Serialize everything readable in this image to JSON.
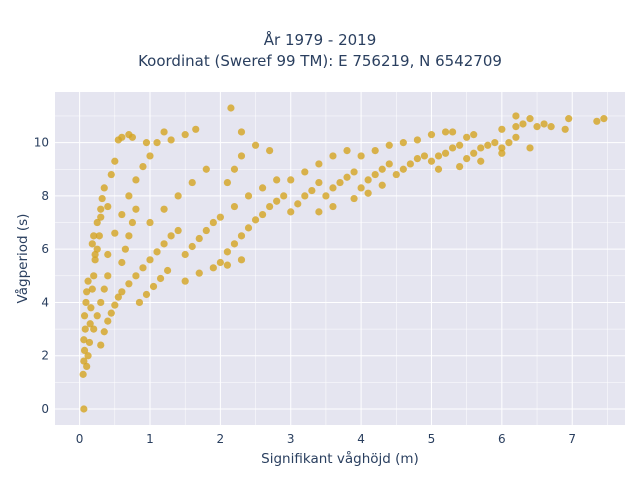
{
  "chart_data": {
    "type": "scatter",
    "title_line1": "År 1979 - 2019",
    "title_line2": "Koordinat (Sweref 99 TM): E 756219, N 6542709",
    "xlabel": "Signifikant våghöjd (m)",
    "ylabel": "Vågperiod (s)",
    "xlim": [
      -0.35,
      7.75
    ],
    "ylim": [
      -0.6,
      11.9
    ],
    "xticks": [
      0,
      1,
      2,
      3,
      4,
      5,
      6,
      7
    ],
    "yticks": [
      0,
      2,
      4,
      6,
      8,
      10
    ],
    "grid": true,
    "legend": "none",
    "colors": {
      "marker": "#D4A421",
      "plot_bg": "#E5E5F0",
      "grid": "#ffffff"
    },
    "series": [
      {
        "points": [
          [
            0.06,
            0.0
          ],
          [
            0.05,
            1.3
          ],
          [
            0.06,
            1.8
          ],
          [
            0.07,
            2.2
          ],
          [
            0.06,
            2.6
          ],
          [
            0.08,
            3.0
          ],
          [
            0.07,
            3.5
          ],
          [
            0.09,
            4.0
          ],
          [
            0.1,
            4.4
          ],
          [
            0.12,
            4.8
          ],
          [
            0.1,
            1.6
          ],
          [
            0.12,
            2.0
          ],
          [
            0.14,
            2.5
          ],
          [
            0.15,
            3.2
          ],
          [
            0.16,
            3.8
          ],
          [
            0.18,
            4.5
          ],
          [
            0.2,
            5.0
          ],
          [
            0.22,
            5.6
          ],
          [
            0.25,
            6.0
          ],
          [
            0.28,
            6.5
          ],
          [
            0.3,
            7.2
          ],
          [
            0.32,
            7.9
          ],
          [
            0.35,
            8.3
          ],
          [
            0.4,
            7.6
          ],
          [
            0.45,
            8.8
          ],
          [
            0.5,
            9.3
          ],
          [
            0.55,
            10.1
          ],
          [
            0.6,
            10.2
          ],
          [
            0.7,
            10.3
          ],
          [
            0.75,
            10.2
          ],
          [
            0.3,
            2.4
          ],
          [
            0.35,
            2.9
          ],
          [
            0.4,
            3.3
          ],
          [
            0.45,
            3.6
          ],
          [
            0.5,
            3.9
          ],
          [
            0.55,
            4.2
          ],
          [
            0.6,
            4.4
          ],
          [
            0.7,
            4.7
          ],
          [
            0.8,
            5.0
          ],
          [
            0.9,
            5.3
          ],
          [
            0.4,
            5.8
          ],
          [
            0.5,
            6.6
          ],
          [
            0.6,
            7.3
          ],
          [
            0.7,
            8.0
          ],
          [
            0.8,
            8.6
          ],
          [
            0.9,
            9.1
          ],
          [
            1.0,
            9.5
          ],
          [
            1.1,
            10.0
          ],
          [
            1.2,
            10.4
          ],
          [
            1.3,
            10.1
          ],
          [
            1.0,
            5.6
          ],
          [
            1.1,
            5.9
          ],
          [
            1.2,
            6.2
          ],
          [
            1.3,
            6.5
          ],
          [
            1.4,
            6.7
          ],
          [
            1.0,
            7.0
          ],
          [
            1.2,
            7.5
          ],
          [
            1.4,
            8.0
          ],
          [
            1.6,
            8.5
          ],
          [
            1.8,
            9.0
          ],
          [
            1.5,
            5.8
          ],
          [
            1.6,
            6.1
          ],
          [
            1.7,
            6.4
          ],
          [
            1.8,
            6.7
          ],
          [
            1.9,
            7.0
          ],
          [
            2.0,
            7.2
          ],
          [
            2.2,
            7.6
          ],
          [
            2.4,
            8.0
          ],
          [
            2.6,
            8.3
          ],
          [
            2.8,
            8.6
          ],
          [
            2.0,
            5.5
          ],
          [
            2.1,
            5.9
          ],
          [
            2.2,
            6.2
          ],
          [
            2.3,
            6.5
          ],
          [
            2.4,
            6.8
          ],
          [
            2.5,
            7.1
          ],
          [
            2.6,
            7.3
          ],
          [
            2.7,
            7.6
          ],
          [
            2.8,
            7.8
          ],
          [
            2.9,
            8.0
          ],
          [
            2.1,
            8.5
          ],
          [
            2.2,
            9.0
          ],
          [
            2.3,
            9.5
          ],
          [
            2.5,
            9.9
          ],
          [
            2.7,
            9.7
          ],
          [
            2.15,
            11.3
          ],
          [
            2.3,
            10.4
          ],
          [
            1.65,
            10.5
          ],
          [
            1.5,
            10.3
          ],
          [
            0.95,
            10.0
          ],
          [
            3.0,
            7.4
          ],
          [
            3.1,
            7.7
          ],
          [
            3.2,
            8.0
          ],
          [
            3.3,
            8.2
          ],
          [
            3.4,
            8.5
          ],
          [
            3.0,
            8.6
          ],
          [
            3.2,
            8.9
          ],
          [
            3.4,
            9.2
          ],
          [
            3.6,
            9.5
          ],
          [
            3.8,
            9.7
          ],
          [
            3.5,
            8.0
          ],
          [
            3.6,
            8.3
          ],
          [
            3.7,
            8.5
          ],
          [
            3.8,
            8.7
          ],
          [
            3.9,
            8.9
          ],
          [
            4.0,
            8.3
          ],
          [
            4.1,
            8.6
          ],
          [
            4.2,
            8.8
          ],
          [
            4.3,
            9.0
          ],
          [
            4.4,
            9.2
          ],
          [
            4.0,
            9.5
          ],
          [
            4.2,
            9.7
          ],
          [
            4.4,
            9.9
          ],
          [
            4.6,
            10.0
          ],
          [
            4.8,
            10.1
          ],
          [
            4.5,
            8.8
          ],
          [
            4.6,
            9.0
          ],
          [
            4.7,
            9.2
          ],
          [
            4.8,
            9.4
          ],
          [
            4.9,
            9.5
          ],
          [
            5.0,
            9.3
          ],
          [
            5.1,
            9.5
          ],
          [
            5.2,
            9.6
          ],
          [
            5.3,
            9.8
          ],
          [
            5.4,
            9.9
          ],
          [
            5.0,
            10.3
          ],
          [
            5.2,
            10.4
          ],
          [
            5.3,
            10.4
          ],
          [
            5.5,
            10.2
          ],
          [
            5.6,
            10.3
          ],
          [
            5.5,
            9.4
          ],
          [
            5.6,
            9.6
          ],
          [
            5.7,
            9.8
          ],
          [
            5.8,
            9.9
          ],
          [
            5.9,
            10.0
          ],
          [
            6.0,
            9.8
          ],
          [
            6.1,
            10.0
          ],
          [
            6.2,
            10.2
          ],
          [
            6.0,
            10.5
          ],
          [
            6.2,
            10.6
          ],
          [
            6.3,
            10.7
          ],
          [
            6.4,
            10.9
          ],
          [
            6.5,
            10.6
          ],
          [
            6.6,
            10.7
          ],
          [
            6.7,
            10.6
          ],
          [
            6.2,
            11.0
          ],
          [
            6.9,
            10.5
          ],
          [
            6.95,
            10.9
          ],
          [
            7.35,
            10.8
          ],
          [
            7.45,
            10.9
          ],
          [
            6.0,
            9.6
          ],
          [
            6.4,
            9.8
          ],
          [
            5.7,
            9.3
          ],
          [
            5.4,
            9.1
          ],
          [
            5.1,
            9.0
          ],
          [
            4.3,
            8.4
          ],
          [
            4.1,
            8.1
          ],
          [
            3.9,
            7.9
          ],
          [
            3.6,
            7.6
          ],
          [
            3.4,
            7.4
          ],
          [
            0.2,
            3.0
          ],
          [
            0.25,
            3.5
          ],
          [
            0.3,
            4.0
          ],
          [
            0.35,
            4.5
          ],
          [
            0.4,
            5.0
          ],
          [
            0.2,
            6.5
          ],
          [
            0.25,
            7.0
          ],
          [
            0.3,
            7.5
          ],
          [
            0.18,
            6.2
          ],
          [
            0.22,
            5.8
          ],
          [
            0.6,
            5.5
          ],
          [
            0.65,
            6.0
          ],
          [
            0.7,
            6.5
          ],
          [
            0.75,
            7.0
          ],
          [
            0.8,
            7.5
          ],
          [
            0.85,
            4.0
          ],
          [
            0.95,
            4.3
          ],
          [
            1.05,
            4.6
          ],
          [
            1.15,
            4.9
          ],
          [
            1.25,
            5.2
          ],
          [
            1.5,
            4.8
          ],
          [
            1.7,
            5.1
          ],
          [
            1.9,
            5.3
          ],
          [
            2.1,
            5.4
          ],
          [
            2.3,
            5.6
          ]
        ]
      }
    ]
  }
}
